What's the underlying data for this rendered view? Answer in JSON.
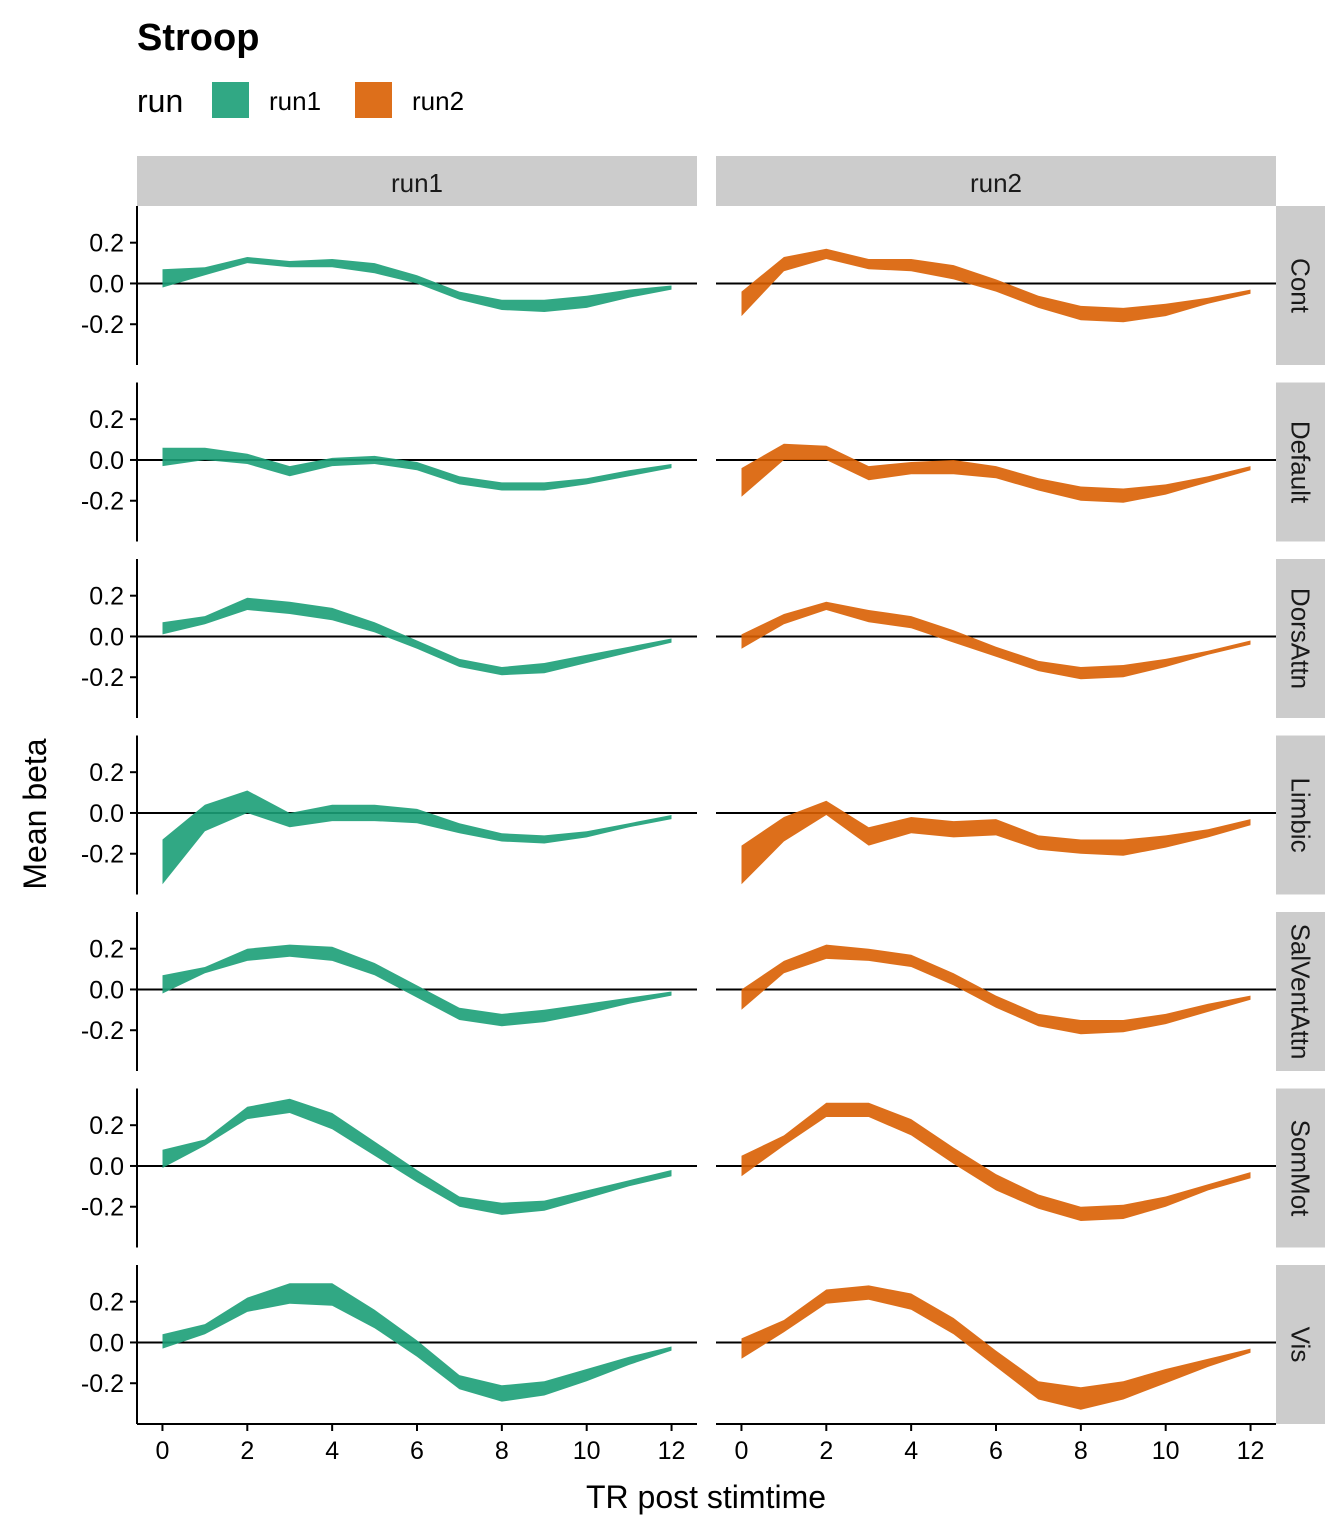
{
  "chart_data": {
    "type": "area",
    "title": "Stroop",
    "xlabel": "TR post stimtime",
    "ylabel": "Mean beta",
    "legend": {
      "title": "run",
      "placement": "top-left",
      "entries": [
        {
          "name": "run1",
          "color": "#1b9e77"
        },
        {
          "name": "run2",
          "color": "#d95f02"
        }
      ]
    },
    "x": [
      0,
      1,
      2,
      3,
      4,
      5,
      6,
      7,
      8,
      9,
      10,
      11,
      12
    ],
    "xticks": [
      0,
      2,
      4,
      6,
      8,
      10,
      12
    ],
    "xtick_labels": [
      "0",
      "2",
      "4",
      "6",
      "8",
      "10",
      "12"
    ],
    "yticks": [
      0.2,
      0.0,
      -0.2
    ],
    "ytick_labels": [
      "0.2",
      "0.0",
      "-0.2"
    ],
    "xlim": [
      -0.6,
      12.6
    ],
    "ylim": [
      -0.4,
      0.38
    ],
    "hline": 0,
    "columns": [
      "run1",
      "run2"
    ],
    "rows": [
      "Cont",
      "Default",
      "DorsAttn",
      "Limbic",
      "SalVentAttn",
      "SomMot",
      "Vis"
    ],
    "panels": {
      "run1": {
        "Cont": {
          "lower": [
            -0.02,
            0.04,
            0.1,
            0.08,
            0.08,
            0.05,
            0.0,
            -0.08,
            -0.13,
            -0.14,
            -0.12,
            -0.07,
            -0.03
          ],
          "upper": [
            0.07,
            0.08,
            0.13,
            0.11,
            0.12,
            0.1,
            0.04,
            -0.04,
            -0.08,
            -0.08,
            -0.06,
            -0.03,
            -0.01
          ]
        },
        "Default": {
          "lower": [
            -0.03,
            0.0,
            -0.02,
            -0.08,
            -0.03,
            -0.02,
            -0.05,
            -0.12,
            -0.15,
            -0.15,
            -0.12,
            -0.08,
            -0.04
          ],
          "upper": [
            0.06,
            0.06,
            0.03,
            -0.03,
            0.01,
            0.02,
            -0.01,
            -0.08,
            -0.11,
            -0.11,
            -0.09,
            -0.05,
            -0.02
          ]
        },
        "DorsAttn": {
          "lower": [
            0.01,
            0.06,
            0.13,
            0.11,
            0.08,
            0.02,
            -0.06,
            -0.15,
            -0.19,
            -0.18,
            -0.13,
            -0.08,
            -0.03
          ],
          "upper": [
            0.07,
            0.1,
            0.19,
            0.17,
            0.14,
            0.07,
            -0.02,
            -0.11,
            -0.15,
            -0.13,
            -0.09,
            -0.05,
            -0.01
          ]
        },
        "Limbic": {
          "lower": [
            -0.35,
            -0.09,
            0.0,
            -0.07,
            -0.04,
            -0.04,
            -0.05,
            -0.1,
            -0.14,
            -0.15,
            -0.12,
            -0.07,
            -0.03
          ],
          "upper": [
            -0.13,
            0.04,
            0.11,
            0.0,
            0.04,
            0.04,
            0.02,
            -0.05,
            -0.1,
            -0.11,
            -0.09,
            -0.05,
            -0.01
          ]
        },
        "SalVentAttn": {
          "lower": [
            -0.02,
            0.08,
            0.14,
            0.16,
            0.14,
            0.07,
            -0.04,
            -0.15,
            -0.18,
            -0.16,
            -0.12,
            -0.07,
            -0.03
          ],
          "upper": [
            0.07,
            0.11,
            0.2,
            0.22,
            0.21,
            0.13,
            0.02,
            -0.09,
            -0.12,
            -0.1,
            -0.07,
            -0.04,
            -0.01
          ]
        },
        "SomMot": {
          "lower": [
            -0.01,
            0.1,
            0.23,
            0.26,
            0.18,
            0.05,
            -0.08,
            -0.2,
            -0.24,
            -0.22,
            -0.16,
            -0.1,
            -0.05
          ],
          "upper": [
            0.08,
            0.13,
            0.29,
            0.33,
            0.26,
            0.12,
            -0.02,
            -0.15,
            -0.18,
            -0.17,
            -0.12,
            -0.07,
            -0.02
          ]
        },
        "Vis": {
          "lower": [
            -0.03,
            0.04,
            0.15,
            0.19,
            0.18,
            0.07,
            -0.07,
            -0.23,
            -0.29,
            -0.26,
            -0.19,
            -0.11,
            -0.04
          ],
          "upper": [
            0.04,
            0.09,
            0.22,
            0.29,
            0.29,
            0.16,
            0.01,
            -0.16,
            -0.21,
            -0.19,
            -0.13,
            -0.07,
            -0.02
          ]
        }
      },
      "run2": {
        "Cont": {
          "lower": [
            -0.16,
            0.06,
            0.12,
            0.07,
            0.06,
            0.02,
            -0.04,
            -0.12,
            -0.18,
            -0.19,
            -0.16,
            -0.1,
            -0.05
          ],
          "upper": [
            -0.04,
            0.13,
            0.17,
            0.12,
            0.12,
            0.09,
            0.02,
            -0.06,
            -0.11,
            -0.12,
            -0.1,
            -0.07,
            -0.03
          ]
        },
        "Default": {
          "lower": [
            -0.18,
            0.0,
            0.0,
            -0.1,
            -0.07,
            -0.07,
            -0.09,
            -0.15,
            -0.2,
            -0.21,
            -0.17,
            -0.11,
            -0.05
          ],
          "upper": [
            -0.04,
            0.08,
            0.07,
            -0.03,
            -0.01,
            0.0,
            -0.03,
            -0.09,
            -0.13,
            -0.14,
            -0.12,
            -0.08,
            -0.03
          ]
        },
        "DorsAttn": {
          "lower": [
            -0.06,
            0.06,
            0.13,
            0.07,
            0.04,
            -0.03,
            -0.1,
            -0.17,
            -0.21,
            -0.2,
            -0.15,
            -0.09,
            -0.04
          ],
          "upper": [
            0.01,
            0.11,
            0.17,
            0.13,
            0.1,
            0.03,
            -0.05,
            -0.12,
            -0.15,
            -0.14,
            -0.11,
            -0.07,
            -0.02
          ]
        },
        "Limbic": {
          "lower": [
            -0.35,
            -0.14,
            -0.01,
            -0.16,
            -0.1,
            -0.12,
            -0.11,
            -0.18,
            -0.2,
            -0.21,
            -0.17,
            -0.12,
            -0.06
          ],
          "upper": [
            -0.16,
            -0.02,
            0.06,
            -0.07,
            -0.02,
            -0.04,
            -0.03,
            -0.11,
            -0.13,
            -0.13,
            -0.11,
            -0.08,
            -0.03
          ]
        },
        "SalVentAttn": {
          "lower": [
            -0.1,
            0.08,
            0.15,
            0.14,
            0.11,
            0.02,
            -0.09,
            -0.18,
            -0.22,
            -0.21,
            -0.17,
            -0.11,
            -0.05
          ],
          "upper": [
            0.0,
            0.14,
            0.22,
            0.2,
            0.17,
            0.08,
            -0.03,
            -0.12,
            -0.15,
            -0.15,
            -0.12,
            -0.07,
            -0.03
          ]
        },
        "SomMot": {
          "lower": [
            -0.05,
            0.1,
            0.24,
            0.24,
            0.15,
            0.01,
            -0.12,
            -0.21,
            -0.27,
            -0.26,
            -0.2,
            -0.12,
            -0.06
          ],
          "upper": [
            0.05,
            0.15,
            0.31,
            0.31,
            0.23,
            0.09,
            -0.04,
            -0.14,
            -0.2,
            -0.19,
            -0.15,
            -0.09,
            -0.03
          ]
        },
        "Vis": {
          "lower": [
            -0.08,
            0.05,
            0.19,
            0.21,
            0.16,
            0.04,
            -0.12,
            -0.28,
            -0.33,
            -0.28,
            -0.2,
            -0.12,
            -0.05
          ],
          "upper": [
            0.02,
            0.11,
            0.26,
            0.28,
            0.24,
            0.12,
            -0.04,
            -0.19,
            -0.22,
            -0.19,
            -0.13,
            -0.08,
            -0.03
          ]
        }
      }
    }
  }
}
